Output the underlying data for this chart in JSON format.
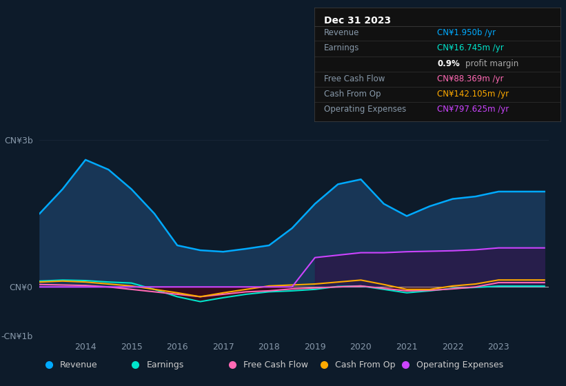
{
  "background_color": "#0d1b2a",
  "plot_bg_color": "#0d1b2a",
  "years": [
    2013.0,
    2013.5,
    2014.0,
    2014.5,
    2015.0,
    2015.5,
    2016.0,
    2016.5,
    2017.0,
    2017.5,
    2018.0,
    2018.5,
    2019.0,
    2019.5,
    2020.0,
    2020.5,
    2021.0,
    2021.5,
    2022.0,
    2022.5,
    2023.0,
    2023.5,
    2024.0
  ],
  "revenue": [
    1.5,
    2.0,
    2.6,
    2.4,
    2.0,
    1.5,
    0.85,
    0.75,
    0.72,
    0.78,
    0.85,
    1.2,
    1.7,
    2.1,
    2.2,
    1.7,
    1.45,
    1.65,
    1.8,
    1.85,
    1.95,
    1.95,
    1.95
  ],
  "earnings": [
    0.12,
    0.14,
    0.13,
    0.1,
    0.08,
    -0.05,
    -0.2,
    -0.3,
    -0.22,
    -0.15,
    -0.1,
    -0.08,
    -0.05,
    0.01,
    0.02,
    -0.05,
    -0.12,
    -0.08,
    -0.03,
    -0.01,
    0.017,
    0.017,
    0.017
  ],
  "free_cash_flow": [
    0.05,
    0.04,
    0.03,
    0.0,
    -0.05,
    -0.1,
    -0.15,
    -0.2,
    -0.15,
    -0.1,
    -0.08,
    -0.04,
    -0.02,
    0.0,
    0.02,
    -0.03,
    -0.08,
    -0.07,
    -0.04,
    0.0,
    0.088,
    0.088,
    0.088
  ],
  "cash_from_op": [
    0.1,
    0.12,
    0.1,
    0.06,
    0.02,
    -0.05,
    -0.12,
    -0.2,
    -0.12,
    -0.05,
    0.02,
    0.04,
    0.06,
    0.1,
    0.14,
    0.05,
    -0.05,
    -0.05,
    0.02,
    0.06,
    0.142,
    0.142,
    0.142
  ],
  "operating_expenses": [
    0.0,
    0.0,
    0.0,
    0.0,
    0.0,
    0.0,
    0.0,
    0.0,
    0.0,
    0.0,
    0.0,
    0.0,
    0.6,
    0.65,
    0.7,
    0.7,
    0.72,
    0.73,
    0.74,
    0.76,
    0.798,
    0.798,
    0.798
  ],
  "revenue_color": "#00aaff",
  "earnings_color": "#00e5cc",
  "free_cash_flow_color": "#ff69b4",
  "cash_from_op_color": "#ffaa00",
  "operating_expenses_color": "#cc44ff",
  "revenue_fill_color": "#1a3a5c",
  "operating_expenses_fill_color": "#2a1a4a",
  "ylim": [
    -1.0,
    3.5
  ],
  "yticks": [
    -1.0,
    0.0,
    3.0
  ],
  "ytick_labels": [
    "-CN¥1b",
    "CN¥0",
    "CN¥3b"
  ],
  "xtick_years": [
    2014,
    2015,
    2016,
    2017,
    2018,
    2019,
    2020,
    2021,
    2022,
    2023
  ],
  "grid_color": "#2a3a4a",
  "legend_labels": [
    "Revenue",
    "Earnings",
    "Free Cash Flow",
    "Cash From Op",
    "Operating Expenses"
  ],
  "legend_colors": [
    "#00aaff",
    "#00e5cc",
    "#ff69b4",
    "#ffaa00",
    "#cc44ff"
  ],
  "info_box": {
    "title": "Dec 31 2023",
    "rows": [
      {
        "label": "Revenue",
        "value": "CN¥1.950b /yr",
        "value_color": "#00aaff"
      },
      {
        "label": "Earnings",
        "value": "CN¥16.745m /yr",
        "value_color": "#00e5cc"
      },
      {
        "label": "",
        "value": "0.9% profit margin",
        "value_color": "#ffffff"
      },
      {
        "label": "Free Cash Flow",
        "value": "CN¥88.369m /yr",
        "value_color": "#ff69b4"
      },
      {
        "label": "Cash From Op",
        "value": "CN¥142.105m /yr",
        "value_color": "#ffaa00"
      },
      {
        "label": "Operating Expenses",
        "value": "CN¥797.625m /yr",
        "value_color": "#cc44ff"
      }
    ]
  }
}
